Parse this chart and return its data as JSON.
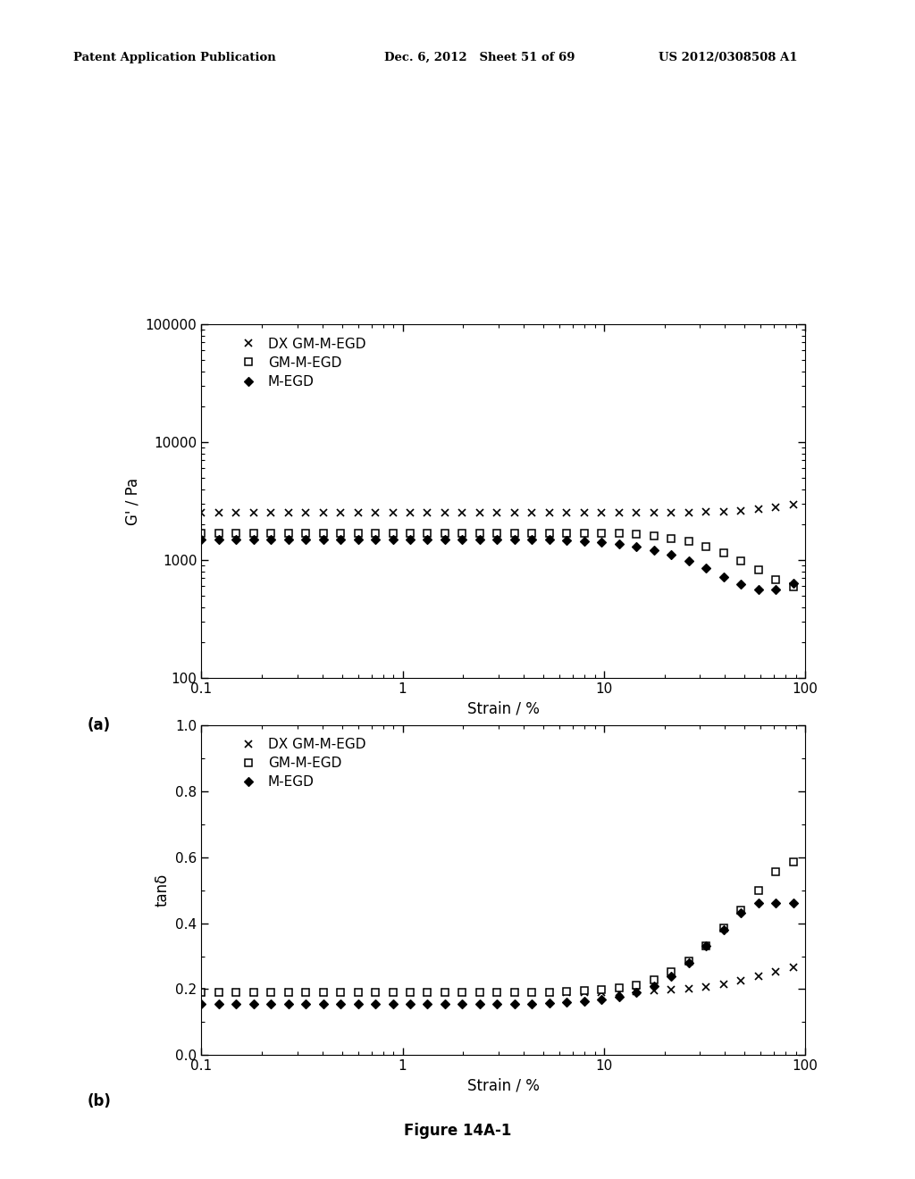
{
  "header_left": "Patent Application Publication",
  "header_mid": "Dec. 6, 2012   Sheet 51 of 69",
  "header_right": "US 2012/0308508 A1",
  "figure_caption": "Figure 14A-1",
  "panel_a_label": "(a)",
  "panel_b_label": "(b)",
  "xlabel": "Strain / %",
  "ylabel_a": "G' / Pa",
  "ylabel_b": "tanδ",
  "xmin": 0.1,
  "xmax": 100,
  "ya_min": 100,
  "ya_max": 100000,
  "yb_min": 0.0,
  "yb_max": 1.0,
  "legend_entries": [
    "DX GM-M-EGD",
    "GM-M-EGD",
    "M-EGD"
  ],
  "dx_strain": [
    0.1,
    0.122,
    0.149,
    0.182,
    0.222,
    0.271,
    0.331,
    0.403,
    0.492,
    0.6,
    0.733,
    0.894,
    1.09,
    1.33,
    1.62,
    1.98,
    2.42,
    2.95,
    3.6,
    4.39,
    5.36,
    6.54,
    7.98,
    9.74,
    11.9,
    14.5,
    17.7,
    21.6,
    26.4,
    32.2,
    39.3,
    48.0,
    58.5,
    71.4,
    87.1
  ],
  "dx_gprime": [
    2500,
    2510,
    2510,
    2510,
    2510,
    2510,
    2510,
    2510,
    2510,
    2510,
    2510,
    2510,
    2510,
    2510,
    2510,
    2510,
    2510,
    2510,
    2510,
    2510,
    2510,
    2510,
    2510,
    2510,
    2510,
    2510,
    2520,
    2530,
    2540,
    2560,
    2580,
    2620,
    2680,
    2800,
    2970
  ],
  "dx_tandelta": [
    0.19,
    0.19,
    0.19,
    0.19,
    0.19,
    0.19,
    0.19,
    0.19,
    0.19,
    0.19,
    0.19,
    0.19,
    0.19,
    0.19,
    0.19,
    0.19,
    0.19,
    0.19,
    0.19,
    0.19,
    0.19,
    0.19,
    0.19,
    0.19,
    0.19,
    0.192,
    0.195,
    0.198,
    0.202,
    0.208,
    0.215,
    0.225,
    0.238,
    0.252,
    0.265
  ],
  "gmm_strain": [
    0.1,
    0.122,
    0.149,
    0.182,
    0.222,
    0.271,
    0.331,
    0.403,
    0.492,
    0.6,
    0.733,
    0.894,
    1.09,
    1.33,
    1.62,
    1.98,
    2.42,
    2.95,
    3.6,
    4.39,
    5.36,
    6.54,
    7.98,
    9.74,
    11.9,
    14.5,
    17.7,
    21.6,
    26.4,
    32.2,
    39.3,
    48.0,
    58.5,
    71.4,
    87.1
  ],
  "gmm_gprime": [
    1700,
    1700,
    1700,
    1700,
    1700,
    1700,
    1700,
    1700,
    1700,
    1700,
    1700,
    1700,
    1700,
    1700,
    1700,
    1700,
    1700,
    1700,
    1700,
    1700,
    1700,
    1700,
    1700,
    1690,
    1680,
    1650,
    1600,
    1530,
    1430,
    1300,
    1150,
    990,
    820,
    680,
    590
  ],
  "gmm_tandelta": [
    0.19,
    0.19,
    0.19,
    0.19,
    0.19,
    0.19,
    0.19,
    0.19,
    0.19,
    0.19,
    0.19,
    0.19,
    0.19,
    0.19,
    0.19,
    0.19,
    0.19,
    0.19,
    0.19,
    0.19,
    0.19,
    0.192,
    0.195,
    0.198,
    0.203,
    0.213,
    0.228,
    0.252,
    0.285,
    0.33,
    0.385,
    0.44,
    0.5,
    0.555,
    0.585
  ],
  "megd_strain": [
    0.1,
    0.122,
    0.149,
    0.182,
    0.222,
    0.271,
    0.331,
    0.403,
    0.492,
    0.6,
    0.733,
    0.894,
    1.09,
    1.33,
    1.62,
    1.98,
    2.42,
    2.95,
    3.6,
    4.39,
    5.36,
    6.54,
    7.98,
    9.74,
    11.9,
    14.5,
    17.7,
    21.6,
    26.4,
    32.2,
    39.3,
    48.0,
    58.5,
    71.4,
    87.1
  ],
  "megd_gprime": [
    1500,
    1500,
    1500,
    1500,
    1500,
    1500,
    1500,
    1500,
    1500,
    1500,
    1500,
    1500,
    1500,
    1500,
    1500,
    1500,
    1500,
    1500,
    1500,
    1495,
    1488,
    1475,
    1455,
    1425,
    1380,
    1310,
    1220,
    1110,
    980,
    850,
    720,
    620,
    560,
    560,
    630
  ],
  "megd_tandelta": [
    0.155,
    0.155,
    0.155,
    0.155,
    0.155,
    0.155,
    0.155,
    0.155,
    0.155,
    0.155,
    0.155,
    0.155,
    0.155,
    0.155,
    0.155,
    0.155,
    0.155,
    0.155,
    0.155,
    0.155,
    0.157,
    0.16,
    0.163,
    0.168,
    0.176,
    0.19,
    0.21,
    0.24,
    0.28,
    0.33,
    0.38,
    0.43,
    0.46,
    0.46,
    0.46
  ]
}
